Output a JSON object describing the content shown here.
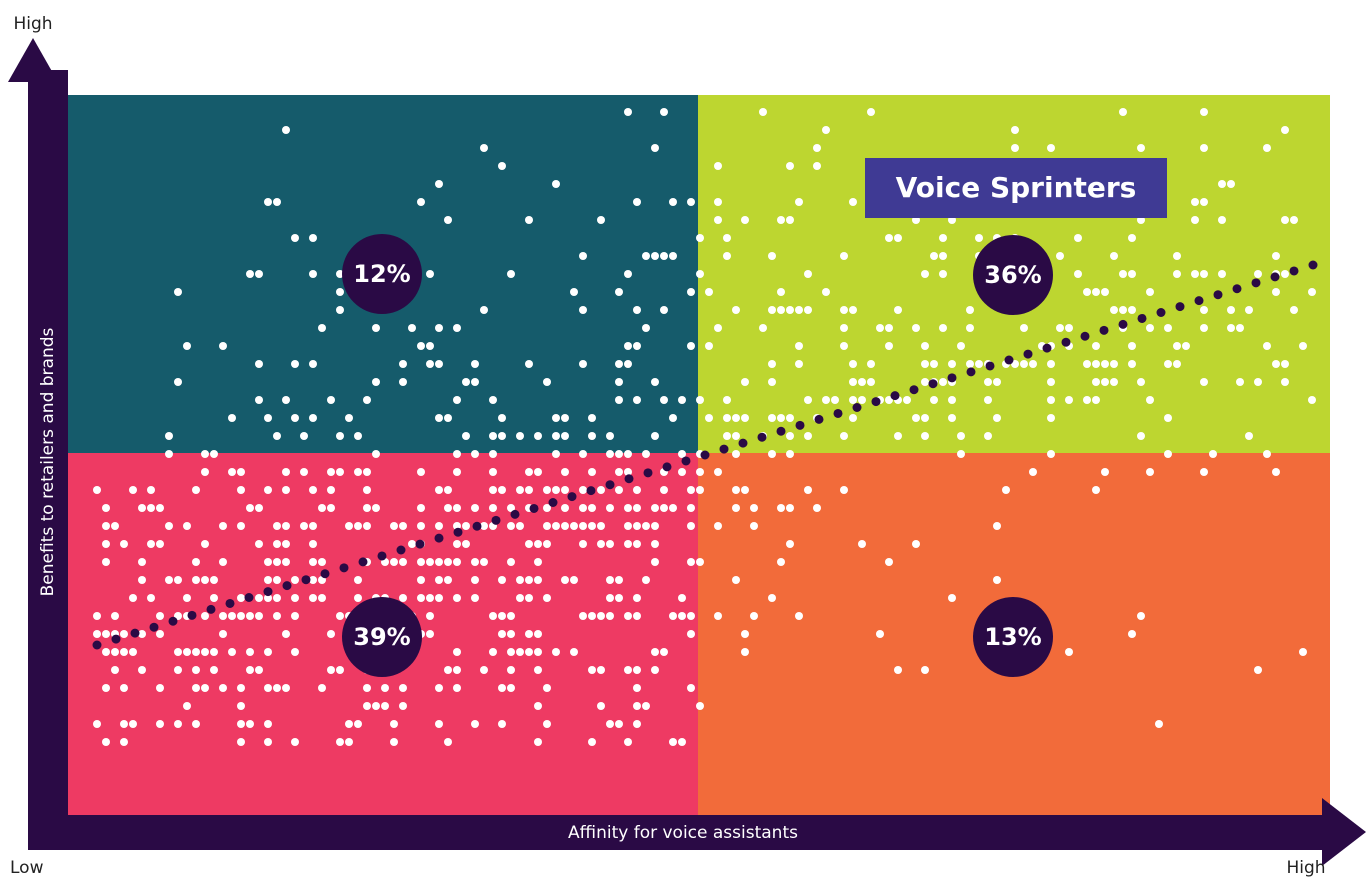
{
  "axes": {
    "y_label": "Benefits to retailers and brands",
    "y_high": "High",
    "x_label": "Affinity for voice assistants",
    "x_low": "Low",
    "x_high": "High"
  },
  "callout": "Voice Sprinters",
  "quadrants": [
    {
      "position": "top-left",
      "label": "12%"
    },
    {
      "position": "top-right",
      "label": "36%"
    },
    {
      "position": "bottom-left",
      "label": "39%"
    },
    {
      "position": "bottom-right",
      "label": "13%"
    }
  ]
}
